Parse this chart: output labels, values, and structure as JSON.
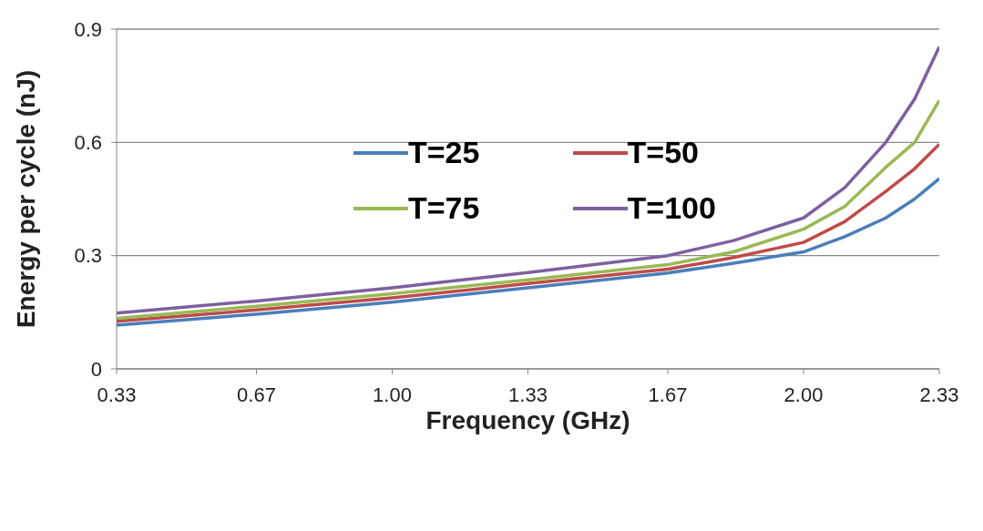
{
  "chart_data": {
    "type": "line",
    "xlabel": "Frequency (GHz)",
    "ylabel": "Energy per cycle (nJ)",
    "x": [
      0.33,
      0.67,
      1.0,
      1.33,
      1.67,
      1.83,
      2.0,
      2.1,
      2.2,
      2.27,
      2.33
    ],
    "series": [
      {
        "name": "T=25",
        "color": "#4a7ebb",
        "values": [
          0.116,
          0.145,
          0.177,
          0.215,
          0.254,
          0.28,
          0.31,
          0.35,
          0.4,
          0.45,
          0.504
        ]
      },
      {
        "name": "T=50",
        "color": "#be4b48",
        "values": [
          0.126,
          0.156,
          0.188,
          0.226,
          0.264,
          0.295,
          0.335,
          0.39,
          0.47,
          0.53,
          0.595
        ]
      },
      {
        "name": "T=75",
        "color": "#98b954",
        "values": [
          0.134,
          0.166,
          0.199,
          0.236,
          0.276,
          0.31,
          0.37,
          0.43,
          0.534,
          0.6,
          0.711
        ]
      },
      {
        "name": "T=100",
        "color": "#7d60a0",
        "values": [
          0.148,
          0.18,
          0.215,
          0.255,
          0.3,
          0.34,
          0.4,
          0.48,
          0.6,
          0.715,
          0.853
        ]
      }
    ],
    "xlim": [
      0.33,
      2.33
    ],
    "xticks": [
      0.33,
      0.67,
      {
        "value": 1,
        "label": "1.00"
      },
      1.33,
      1.67,
      {
        "value": 2,
        "label": "2.00"
      },
      2.33
    ],
    "ylim": [
      0,
      0.9
    ],
    "yticks": [
      0,
      0.3,
      0.6,
      0.9
    ],
    "grid": "y",
    "legend": "top",
    "marker": "none",
    "line_style": "solid"
  }
}
